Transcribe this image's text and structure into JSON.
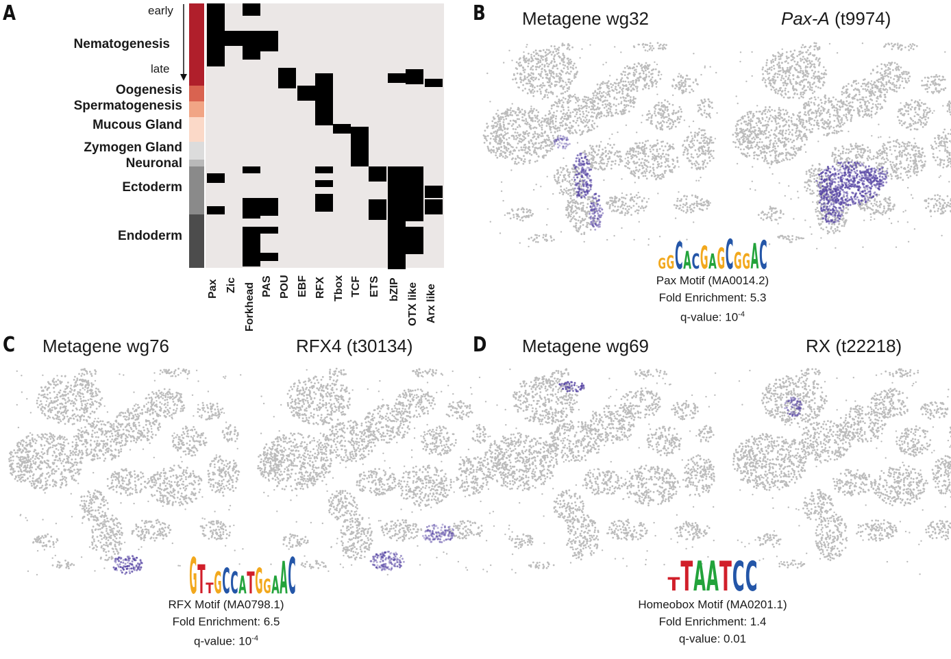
{
  "panels": {
    "a": {
      "letter": "A",
      "arrow_top": "early",
      "arrow_bottom": "late",
      "rows": [
        "Nematogenesis",
        "Oogenesis",
        "Spermatogenesis",
        "Mucous Gland",
        "Zymogen Gland",
        "Neuronal",
        "Ectoderm",
        "Endoderm"
      ],
      "row_colors": [
        "#b01f2b",
        "#d96350",
        "#f1a585",
        "#fbd9c8",
        "#dcdcdc",
        "#b9b9b9",
        "#8a8a8a",
        "#4c4c4c"
      ],
      "columns": [
        "Pax",
        "Zic",
        "Forkhead",
        "PAS",
        "POU",
        "EBF",
        "RFX",
        "Tbox",
        "TCF",
        "ETS",
        "bZIP",
        "OTX like",
        "Arx like"
      ],
      "heatmap_background": "#ebe7e6",
      "heatmap_on": "#000000"
    },
    "b": {
      "letter": "B",
      "left_title": "Metagene wg32",
      "right_title_italic": "Pax-A",
      "right_title_rest": " (t9974)",
      "motif_letters": "GGCACGAGCGGAC",
      "motif_name": "Pax Motif (MA0014.2)",
      "fold": "Fold Enrichment: 5.3",
      "q_prefix": "q-value: 10",
      "q_exp": "-4"
    },
    "c": {
      "letter": "C",
      "left_title": "Metagene wg76",
      "right_title": "RFX4 (t30134)",
      "motif_letters": "GTTGCCATGGAAC",
      "motif_name": "RFX Motif (MA0798.1)",
      "fold": "Fold Enrichment: 6.5",
      "q_prefix": "q-value: 10",
      "q_exp": "-4"
    },
    "d": {
      "letter": "D",
      "left_title": "Metagene wg69",
      "right_title": "RX (t22218)",
      "motif_letters": "TTAATCC",
      "motif_name": "Homeobox Motif (MA0201.1)",
      "fold": "Fold Enrichment: 1.4",
      "q_value": "q-value: 0.01"
    }
  },
  "colors": {
    "point_gray": "#bcbcbc",
    "expression": "#5b4aa6",
    "base_A": "#23a33b",
    "base_C": "#2456a8",
    "base_G": "#f2a81d",
    "base_T": "#d11f2a"
  }
}
